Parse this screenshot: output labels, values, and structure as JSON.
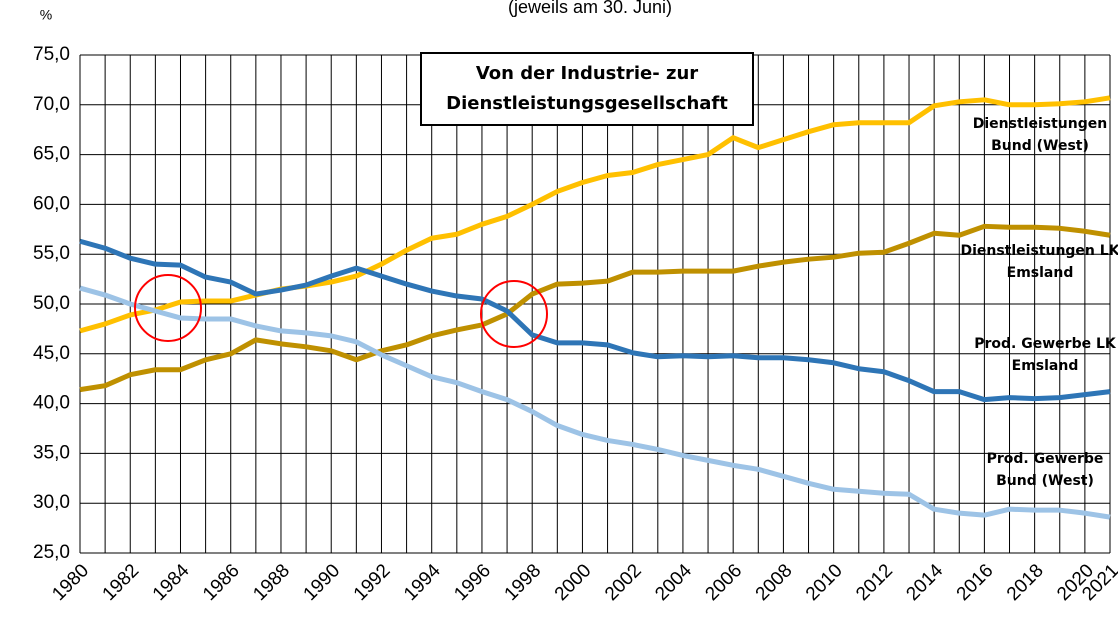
{
  "chart_data": {
    "type": "line",
    "title": "Von der Industrie- zur Dienstleistungsgesellschaft",
    "subtitle": "(jeweils am 30. Juni)",
    "y_label": "%",
    "x": [
      1980,
      1981,
      1982,
      1983,
      1984,
      1985,
      1986,
      1987,
      1988,
      1989,
      1990,
      1991,
      1992,
      1993,
      1994,
      1995,
      1996,
      1997,
      1998,
      1999,
      2000,
      2001,
      2002,
      2003,
      2004,
      2005,
      2006,
      2007,
      2008,
      2009,
      2010,
      2011,
      2012,
      2013,
      2014,
      2015,
      2016,
      2017,
      2018,
      2019,
      2020,
      2021
    ],
    "xlim": [
      1980,
      2021
    ],
    "xticks": [
      1980,
      1982,
      1984,
      1986,
      1988,
      1990,
      1992,
      1994,
      1996,
      1998,
      2000,
      2002,
      2004,
      2006,
      2008,
      2010,
      2012,
      2014,
      2016,
      2018,
      2020,
      2021
    ],
    "ylim": [
      25,
      75
    ],
    "yticks": [
      {
        "value": 25,
        "label": "25,0"
      },
      {
        "value": 30,
        "label": "30,0"
      },
      {
        "value": 35,
        "label": "35,0"
      },
      {
        "value": 40,
        "label": "40,0"
      },
      {
        "value": 45,
        "label": "45,0"
      },
      {
        "value": 50,
        "label": "50,0"
      },
      {
        "value": 55,
        "label": "55,0"
      },
      {
        "value": 60,
        "label": "60,0"
      },
      {
        "value": 65,
        "label": "65,0"
      },
      {
        "value": 70,
        "label": "70,0"
      },
      {
        "value": 75,
        "label": "75,0"
      }
    ],
    "grid": true,
    "series": [
      {
        "name": "Dienstleistungen Bund (West)",
        "color": "#FFC000",
        "values": [
          47.3,
          48.0,
          48.9,
          49.4,
          50.2,
          50.3,
          50.3,
          50.9,
          51.5,
          51.8,
          52.2,
          52.8,
          54.0,
          55.4,
          56.6,
          57.0,
          58.0,
          58.8,
          60.0,
          61.3,
          62.2,
          62.9,
          63.2,
          64.0,
          64.5,
          65.0,
          66.7,
          65.7,
          66.5,
          67.3,
          68.0,
          68.2,
          68.2,
          68.2,
          69.9,
          70.3,
          70.5,
          70.0,
          70.0,
          70.1,
          70.3,
          70.7
        ]
      },
      {
        "name": "Dienstleistungen LK Emsland",
        "color": "#BF9000",
        "values": [
          41.4,
          41.8,
          42.9,
          43.4,
          43.4,
          44.4,
          45.0,
          46.4,
          46.0,
          45.7,
          45.3,
          44.4,
          45.3,
          45.9,
          46.8,
          47.4,
          47.9,
          49.0,
          51.0,
          52.0,
          52.1,
          52.3,
          53.2,
          53.2,
          53.3,
          53.3,
          53.3,
          53.8,
          54.2,
          54.5,
          54.7,
          55.1,
          55.2,
          56.1,
          57.1,
          56.9,
          57.8,
          57.7,
          57.7,
          57.6,
          57.3,
          56.9
        ]
      },
      {
        "name": "Prod. Gewerbe LK Emsland",
        "color": "#2E75B6",
        "values": [
          56.3,
          55.6,
          54.6,
          54.0,
          53.9,
          52.7,
          52.2,
          51.0,
          51.4,
          51.9,
          52.8,
          53.6,
          52.8,
          52.0,
          51.3,
          50.8,
          50.5,
          49.3,
          46.9,
          46.1,
          46.1,
          45.9,
          45.1,
          44.7,
          44.8,
          44.7,
          44.8,
          44.6,
          44.6,
          44.4,
          44.1,
          43.5,
          43.2,
          42.3,
          41.2,
          41.2,
          40.4,
          40.6,
          40.5,
          40.6,
          40.9,
          41.2
        ]
      },
      {
        "name": "Prod. Gewerbe Bund (West)",
        "color": "#9DC3E6",
        "values": [
          51.6,
          50.9,
          50.0,
          49.3,
          48.6,
          48.5,
          48.5,
          47.8,
          47.3,
          47.1,
          46.8,
          46.2,
          44.9,
          43.8,
          42.7,
          42.1,
          41.2,
          40.4,
          39.2,
          37.8,
          36.9,
          36.3,
          35.9,
          35.4,
          34.8,
          34.3,
          33.8,
          33.4,
          32.7,
          32.0,
          31.4,
          31.2,
          31.0,
          30.9,
          29.4,
          29.0,
          28.8,
          29.4,
          29.3,
          29.3,
          29.0,
          28.6
        ]
      }
    ]
  }
}
